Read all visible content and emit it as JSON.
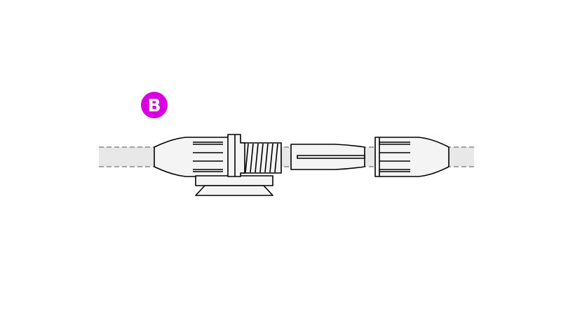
{
  "badge": {
    "label": "B",
    "color": "#d900e0"
  },
  "colors": {
    "stroke": "#000000",
    "cable": "#e8e8e8",
    "part_fill": "#f4f4f4",
    "center_line": "#555555"
  },
  "parts": [
    {
      "name": "left-cable-gland-nut",
      "icon": "gland-nut"
    },
    {
      "name": "bulkhead-threaded-body",
      "icon": "threaded-body"
    },
    {
      "name": "mounting-base",
      "icon": "base-plate"
    },
    {
      "name": "split-sealing-insert",
      "icon": "insert"
    },
    {
      "name": "right-cable-gland-nut",
      "icon": "gland-nut"
    }
  ]
}
